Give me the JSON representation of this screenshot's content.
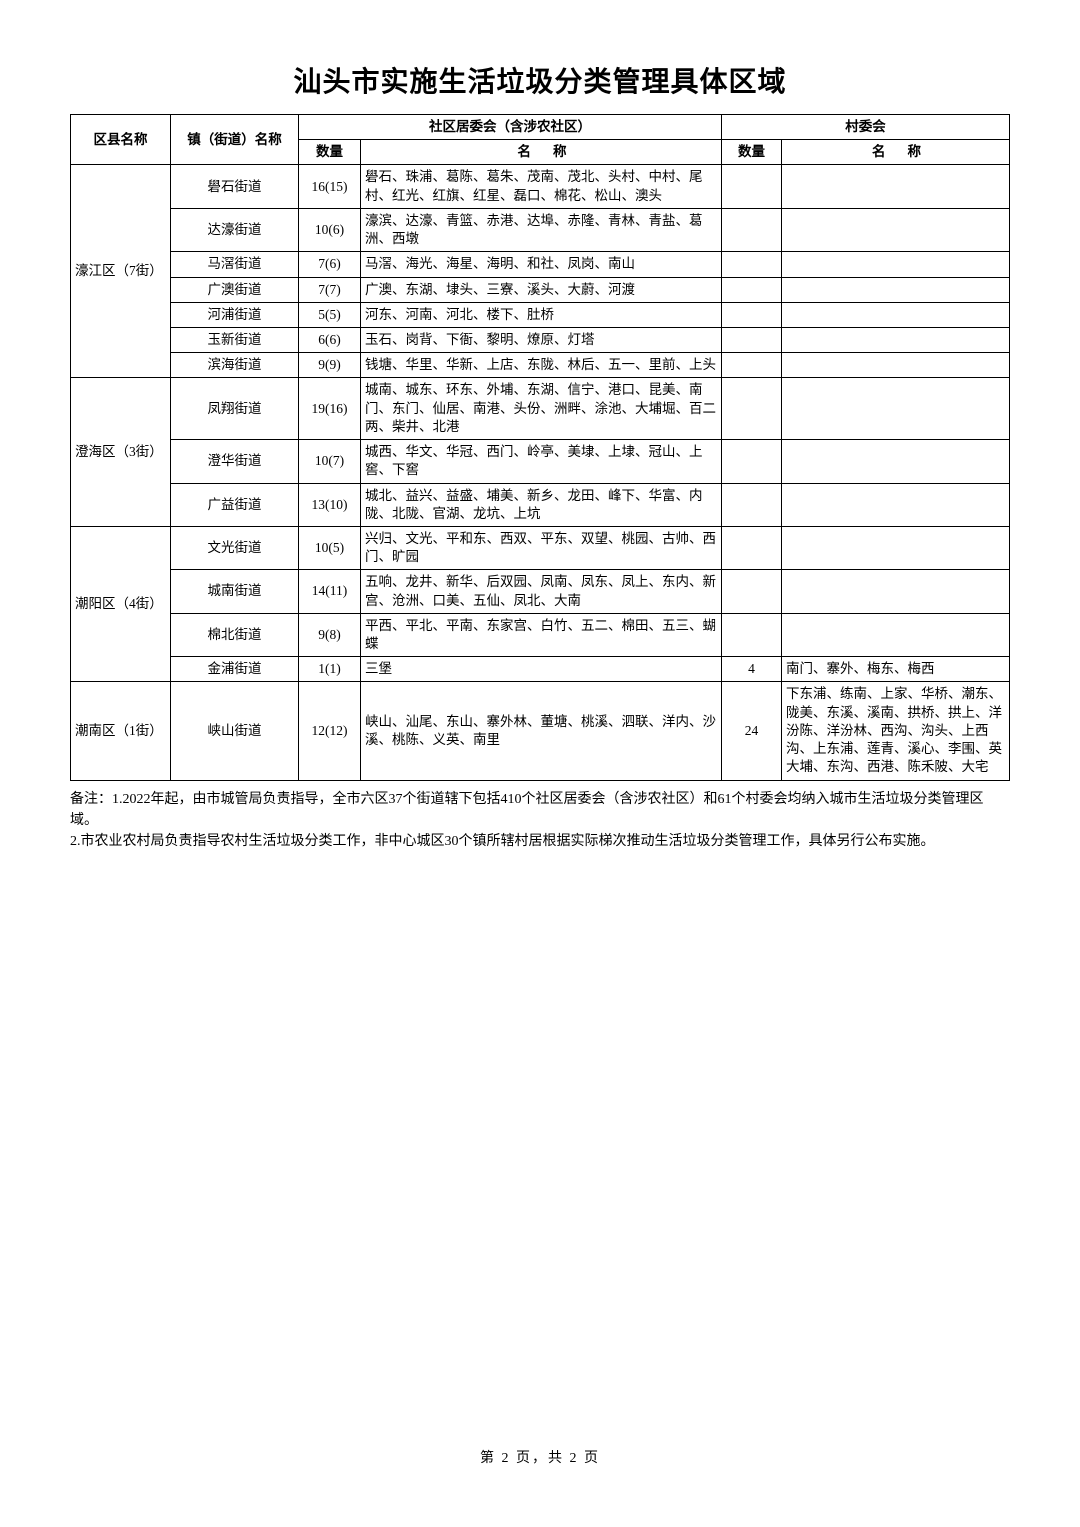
{
  "title": "汕头市实施生活垃圾分类管理具体区域",
  "columns": {
    "district": "区县名称",
    "street": "镇（街道）名称",
    "community_group": "社区居委会（含涉农社区）",
    "village_group": "村委会",
    "qty": "数量",
    "name_label": "名称"
  },
  "districts": [
    {
      "name": "濠江区（7街）",
      "rows": [
        {
          "street": "礐石街道",
          "s_qty": "16(15)",
          "s_names": "礐石、珠浦、葛陈、葛朱、茂南、茂北、头村、中村、尾村、红光、红旗、红星、磊口、棉花、松山、澳头",
          "v_qty": "",
          "v_names": ""
        },
        {
          "street": "达濠街道",
          "s_qty": "10(6)",
          "s_names": "濠滨、达濠、青篮、赤港、达埠、赤隆、青林、青盐、葛洲、西墩",
          "v_qty": "",
          "v_names": ""
        },
        {
          "street": "马滘街道",
          "s_qty": "7(6)",
          "s_names": "马滘、海光、海星、海明、和社、凤岗、南山",
          "v_qty": "",
          "v_names": ""
        },
        {
          "street": "广澳街道",
          "s_qty": "7(7)",
          "s_names": "广澳、东湖、埭头、三寮、溪头、大蔚、河渡",
          "v_qty": "",
          "v_names": ""
        },
        {
          "street": "河浦街道",
          "s_qty": "5(5)",
          "s_names": "河东、河南、河北、楼下、肚桥",
          "v_qty": "",
          "v_names": ""
        },
        {
          "street": "玉新街道",
          "s_qty": "6(6)",
          "s_names": "玉石、岗背、下衙、黎明、燎原、灯塔",
          "v_qty": "",
          "v_names": ""
        },
        {
          "street": "滨海街道",
          "s_qty": "9(9)",
          "s_names": "钱塘、华里、华新、上店、东陇、林后、五一、里前、上头",
          "v_qty": "",
          "v_names": ""
        }
      ]
    },
    {
      "name": "澄海区（3街）",
      "rows": [
        {
          "street": "凤翔街道",
          "s_qty": "19(16)",
          "s_names": "城南、城东、环东、外埔、东湖、信宁、港口、昆美、南门、东门、仙居、南港、头份、洲畔、涂池、大埔堀、百二两、柴井、北港",
          "v_qty": "",
          "v_names": ""
        },
        {
          "street": "澄华街道",
          "s_qty": "10(7)",
          "s_names": "城西、华文、华冠、西门、岭亭、美埭、上埭、冠山、上窖、下窖",
          "v_qty": "",
          "v_names": ""
        },
        {
          "street": "广益街道",
          "s_qty": "13(10)",
          "s_names": "城北、益兴、益盛、埔美、新乡、龙田、峰下、华富、内陇、北陇、官湖、龙坑、上坑",
          "v_qty": "",
          "v_names": ""
        }
      ]
    },
    {
      "name": "潮阳区（4街）",
      "rows": [
        {
          "street": "文光街道",
          "s_qty": "10(5)",
          "s_names": "兴归、文光、平和东、西双、平东、双望、桃园、古帅、西门、旷园",
          "v_qty": "",
          "v_names": ""
        },
        {
          "street": "城南街道",
          "s_qty": "14(11)",
          "s_names": "五响、龙井、新华、后双园、凤南、凤东、凤上、东内、新宫、沧洲、口美、五仙、凤北、大南",
          "v_qty": "",
          "v_names": ""
        },
        {
          "street": "棉北街道",
          "s_qty": "9(8)",
          "s_names": "平西、平北、平南、东家宫、白竹、五二、棉田、五三、蝴蝶",
          "v_qty": "",
          "v_names": ""
        },
        {
          "street": "金浦街道",
          "s_qty": "1(1)",
          "s_names": "三堡",
          "v_qty": "4",
          "v_names": "南门、寨外、梅东、梅西"
        }
      ]
    },
    {
      "name": "潮南区（1街）",
      "rows": [
        {
          "street": "峡山街道",
          "s_qty": "12(12)",
          "s_names": "峡山、汕尾、东山、寨外林、董塘、桃溪、泗联、洋内、沙溪、桃陈、义英、南里",
          "v_qty": "24",
          "v_names": "下东浦、练南、上家、华桥、潮东、陇美、东溪、溪南、拱桥、拱上、洋汾陈、洋汾林、西沟、沟头、上西沟、上东浦、莲青、溪心、李围、英大埔、东沟、西港、陈禾陂、大宅"
        }
      ]
    }
  ],
  "notes": [
    "备注：1.2022年起，由市城管局负责指导，全市六区37个街道辖下包括410个社区居委会（含涉农社区）和61个村委会均纳入城市生活垃圾分类管理区域。",
    "2.市农业农村局负责指导农村生活垃圾分类工作，非中心城区30个镇所辖村居根据实际梯次推动生活垃圾分类管理工作，具体另行公布实施。"
  ],
  "pager": "第 2 页，共 2 页"
}
